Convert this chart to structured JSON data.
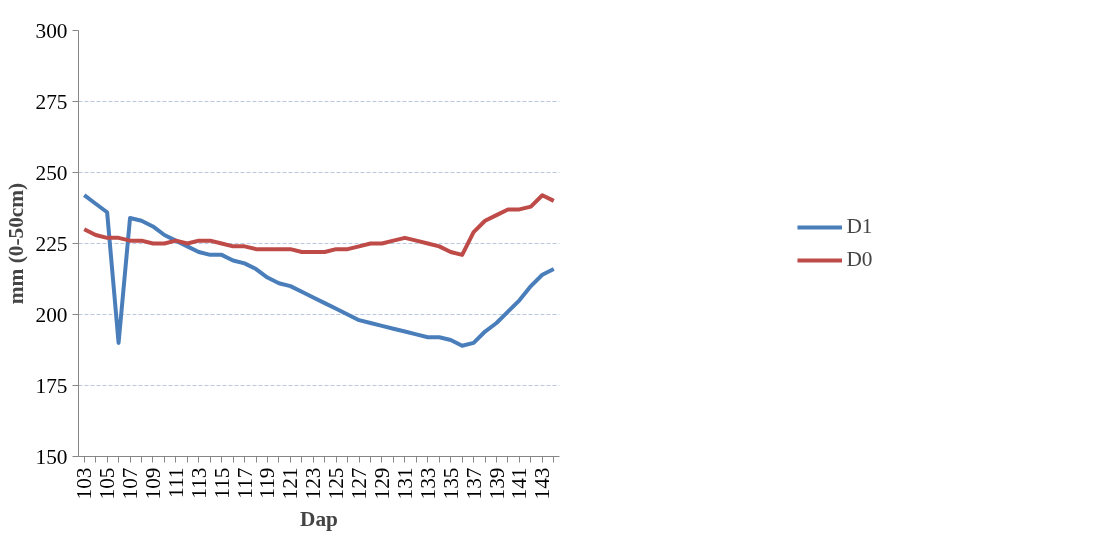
{
  "chart_data": {
    "type": "line",
    "xlabel": "Dap",
    "ylabel": "mm (0-50cm)",
    "categories": [
      "103",
      null,
      "105",
      null,
      "107",
      null,
      "109",
      null,
      "111",
      null,
      "113",
      null,
      "115",
      null,
      "117",
      null,
      "119",
      null,
      "121",
      null,
      "123",
      null,
      "125",
      null,
      "127",
      null,
      "129",
      null,
      "131",
      null,
      "133",
      null,
      "135",
      null,
      "137",
      null,
      "139",
      null,
      "141",
      null,
      "143",
      null
    ],
    "series": [
      {
        "name": "D1",
        "color": "#4a7ebb",
        "values": [
          242,
          239,
          236,
          190,
          234,
          233,
          231,
          228,
          226,
          224,
          222,
          221,
          221,
          219,
          218,
          216,
          213,
          211,
          210,
          208,
          206,
          204,
          202,
          200,
          198,
          197,
          196,
          195,
          194,
          193,
          192,
          192,
          191,
          189,
          190,
          194,
          197,
          201,
          205,
          210,
          214,
          216
        ]
      },
      {
        "name": "D0",
        "color": "#be4b48",
        "values": [
          230,
          228,
          227,
          227,
          226,
          226,
          225,
          225,
          226,
          225,
          226,
          226,
          225,
          224,
          224,
          223,
          223,
          223,
          223,
          222,
          222,
          222,
          223,
          223,
          224,
          225,
          225,
          226,
          227,
          226,
          225,
          224,
          222,
          221,
          229,
          233,
          235,
          237,
          237,
          238,
          242,
          240
        ]
      }
    ],
    "ylim": [
      150,
      300
    ],
    "yticks": [
      150,
      175,
      200,
      225,
      250,
      275,
      300
    ],
    "grid": "y",
    "legend": "right",
    "marker": "none",
    "line_style": "solid"
  }
}
